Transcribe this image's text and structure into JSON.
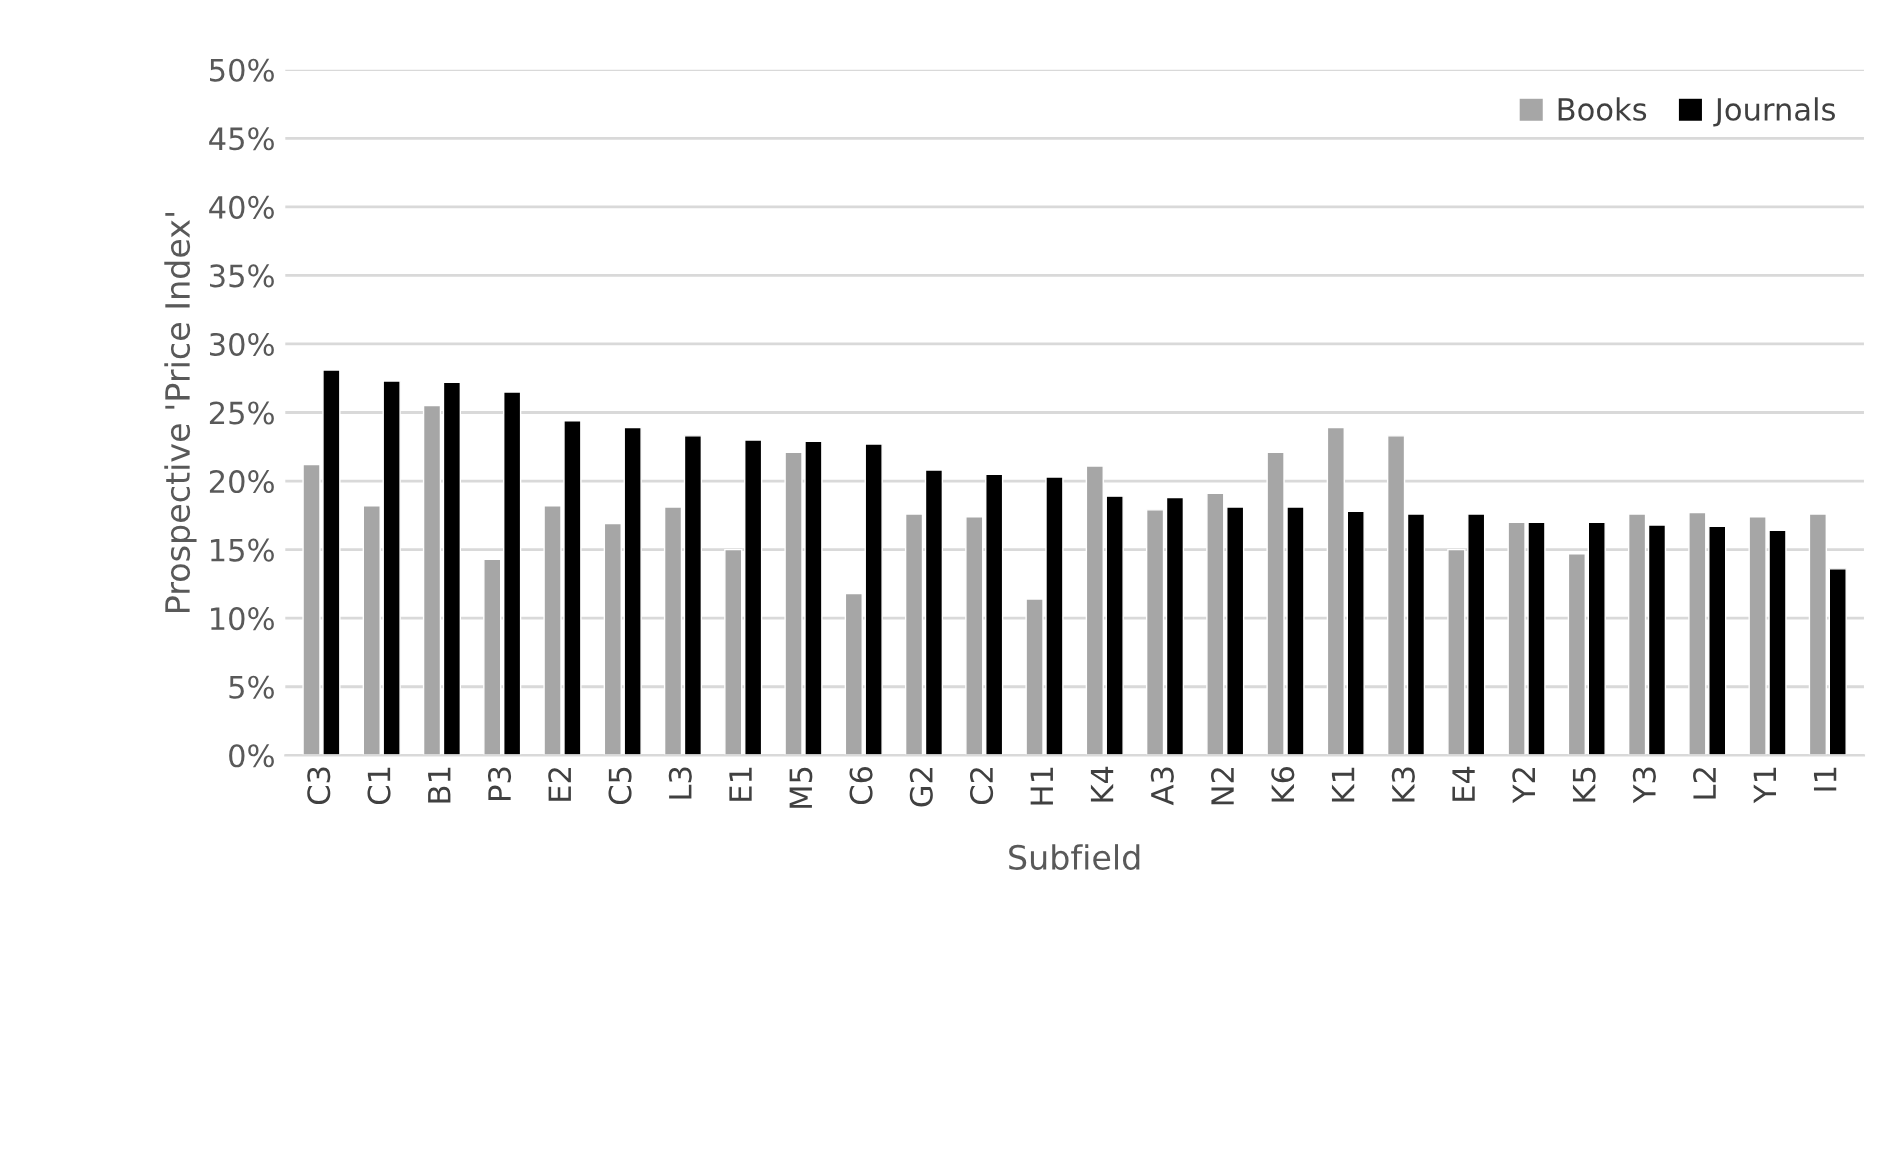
{
  "chart_data": {
    "type": "bar",
    "xlabel": "Subfield",
    "ylabel": "Prospective 'Price Index'",
    "categories": [
      "C3",
      "C1",
      "B1",
      "P3",
      "E2",
      "C5",
      "L3",
      "E1",
      "M5",
      "C6",
      "G2",
      "C2",
      "H1",
      "K4",
      "A3",
      "N2",
      "K6",
      "K1",
      "K3",
      "E4",
      "Y2",
      "K5",
      "Y3",
      "L2",
      "Y1",
      "I1"
    ],
    "series": [
      {
        "name": "Books",
        "color": "#a6a6a6",
        "values": [
          21.2,
          18.2,
          25.5,
          14.3,
          18.2,
          16.9,
          18.1,
          15.0,
          22.1,
          11.8,
          17.6,
          17.4,
          11.4,
          21.1,
          17.9,
          19.1,
          22.1,
          23.9,
          23.3,
          15.0,
          17.0,
          14.7,
          17.6,
          17.7,
          17.4,
          17.6
        ]
      },
      {
        "name": "Journals",
        "color": "#000000",
        "values": [
          28.1,
          27.3,
          27.2,
          26.5,
          24.4,
          23.9,
          23.3,
          23.0,
          22.9,
          22.7,
          20.8,
          20.5,
          20.3,
          18.9,
          18.8,
          18.1,
          18.1,
          17.8,
          17.6,
          17.6,
          17.0,
          17.0,
          16.8,
          16.7,
          16.4,
          13.6
        ]
      }
    ],
    "ylim": [
      0,
      50
    ],
    "yticks": [
      {
        "value": 0,
        "label": "0%"
      },
      {
        "value": 5,
        "label": "5%"
      },
      {
        "value": 10,
        "label": "10%"
      },
      {
        "value": 15,
        "label": "15%"
      },
      {
        "value": 20,
        "label": "20%"
      },
      {
        "value": 25,
        "label": "25%"
      },
      {
        "value": 30,
        "label": "30%"
      },
      {
        "value": 35,
        "label": "35%"
      },
      {
        "value": 40,
        "label": "40%"
      },
      {
        "value": 45,
        "label": "45%"
      },
      {
        "value": 50,
        "label": "50%"
      }
    ],
    "grid": "y",
    "legend": "top right"
  }
}
